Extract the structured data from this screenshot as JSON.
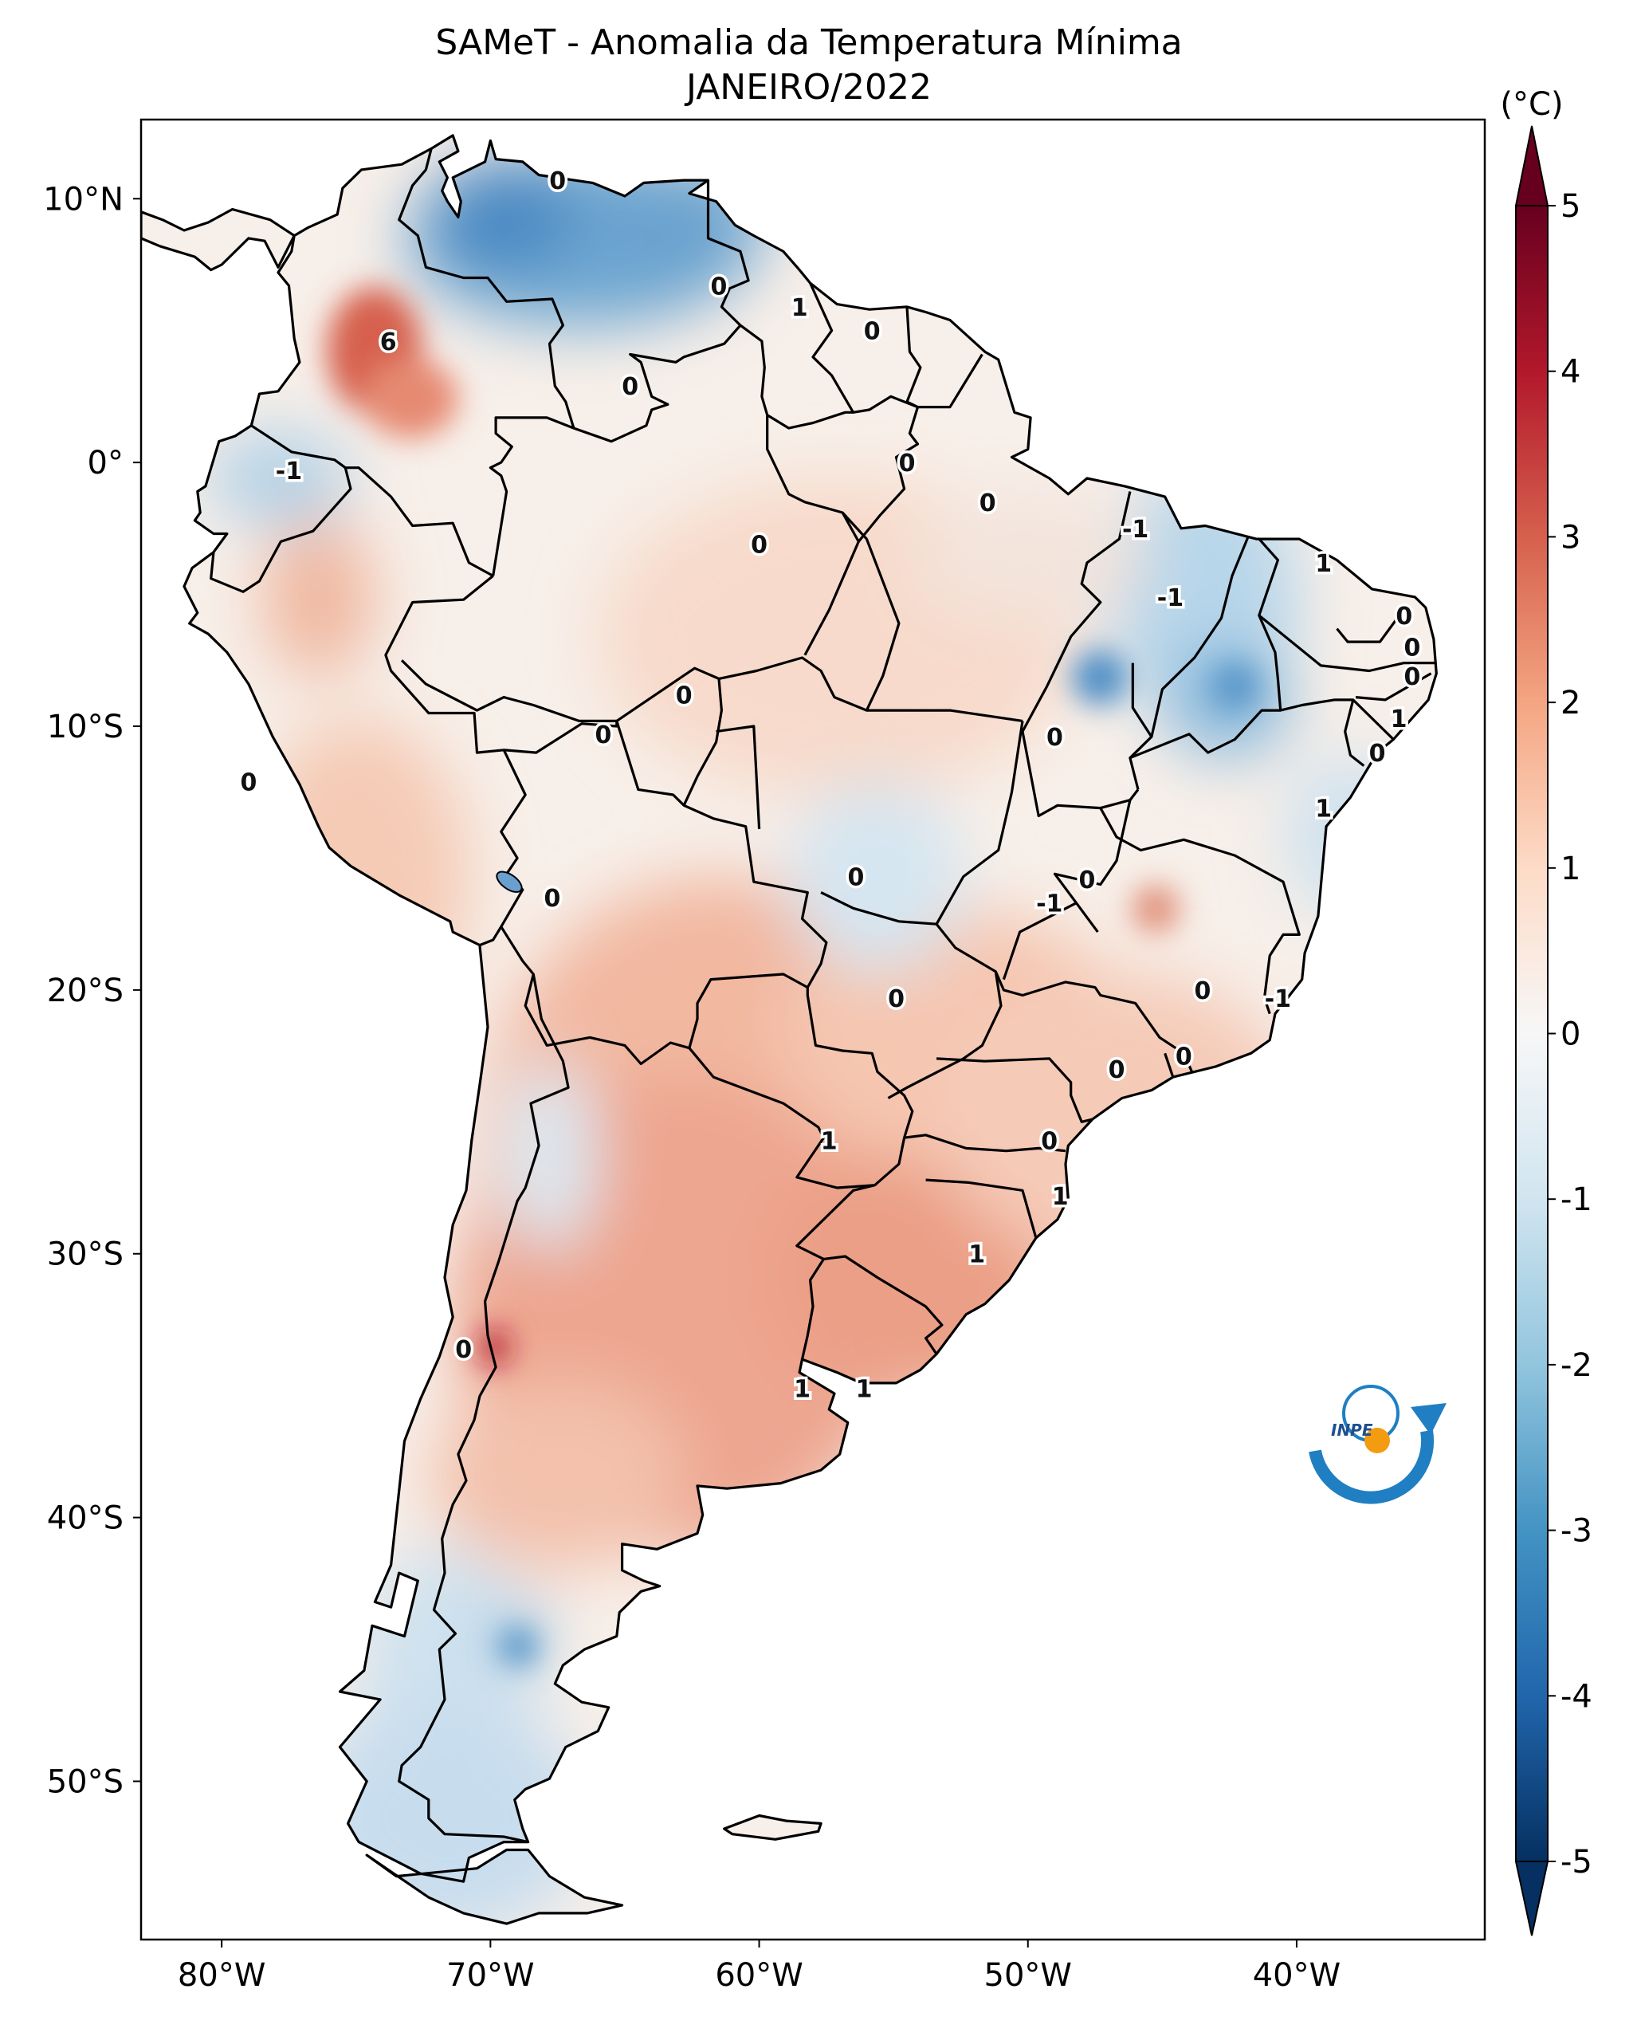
{
  "title": {
    "line1": "SAMeT - Anomalia da Temperatura Mínima",
    "line2": "JANEIRO/2022"
  },
  "axes": {
    "lon_range": [
      -83,
      -33
    ],
    "lat_range": [
      -56,
      13
    ],
    "lon_ticks": [
      {
        "value": -80,
        "label": "80°W"
      },
      {
        "value": -70,
        "label": "70°W"
      },
      {
        "value": -60,
        "label": "60°W"
      },
      {
        "value": -50,
        "label": "50°W"
      },
      {
        "value": -40,
        "label": "40°W"
      }
    ],
    "lat_ticks": [
      {
        "value": 10,
        "label": "10°N"
      },
      {
        "value": 0,
        "label": "0°"
      },
      {
        "value": -10,
        "label": "10°S"
      },
      {
        "value": -20,
        "label": "20°S"
      },
      {
        "value": -30,
        "label": "30°S"
      },
      {
        "value": -40,
        "label": "40°S"
      },
      {
        "value": -50,
        "label": "50°S"
      }
    ]
  },
  "colorbar": {
    "unit": "(°C)",
    "min": -5,
    "max": 5,
    "extend": "both",
    "ticks": [
      "5",
      "4",
      "3",
      "2",
      "1",
      "0",
      "-1",
      "-2",
      "-3",
      "-4",
      "-5"
    ],
    "colors": [
      "#67001f",
      "#b2182b",
      "#d6604d",
      "#f4a582",
      "#fddbc7",
      "#f7f7f7",
      "#d1e5f0",
      "#92c5de",
      "#4393c3",
      "#2166ac",
      "#053061"
    ]
  },
  "contour_labels": [
    {
      "text": "0",
      "lon": -67.5,
      "lat": 10.7
    },
    {
      "text": "0",
      "lon": -61.5,
      "lat": 6.7
    },
    {
      "text": "1",
      "lon": -58.5,
      "lat": 5.9
    },
    {
      "text": "0",
      "lon": -55.8,
      "lat": 5.0
    },
    {
      "text": "6",
      "lon": -73.8,
      "lat": 4.6
    },
    {
      "text": "0",
      "lon": -64.8,
      "lat": 2.9
    },
    {
      "text": "-1",
      "lon": -77.5,
      "lat": -0.3
    },
    {
      "text": "0",
      "lon": -54.5,
      "lat": 0.0
    },
    {
      "text": "0",
      "lon": -51.5,
      "lat": -1.5
    },
    {
      "text": "-1",
      "lon": -46.0,
      "lat": -2.5
    },
    {
      "text": "1",
      "lon": -39.0,
      "lat": -3.8
    },
    {
      "text": "0",
      "lon": -60.0,
      "lat": -3.1
    },
    {
      "text": "-1",
      "lon": -44.7,
      "lat": -5.1
    },
    {
      "text": "0",
      "lon": -36.0,
      "lat": -5.8
    },
    {
      "text": "0",
      "lon": -35.7,
      "lat": -7.0
    },
    {
      "text": "0",
      "lon": -35.7,
      "lat": -8.1
    },
    {
      "text": "1",
      "lon": -36.2,
      "lat": -9.7
    },
    {
      "text": "0",
      "lon": -37.0,
      "lat": -11.0
    },
    {
      "text": "0",
      "lon": -62.8,
      "lat": -8.8
    },
    {
      "text": "0",
      "lon": -65.8,
      "lat": -10.3
    },
    {
      "text": "0",
      "lon": -49.0,
      "lat": -10.4
    },
    {
      "text": "1",
      "lon": -39.0,
      "lat": -13.1
    },
    {
      "text": "0",
      "lon": -79.0,
      "lat": -12.1
    },
    {
      "text": "0",
      "lon": -56.4,
      "lat": -15.7
    },
    {
      "text": "0",
      "lon": -47.8,
      "lat": -15.8
    },
    {
      "text": "-1",
      "lon": -49.2,
      "lat": -16.7
    },
    {
      "text": "0",
      "lon": -67.7,
      "lat": -16.5
    },
    {
      "text": "0",
      "lon": -43.5,
      "lat": -20.0
    },
    {
      "text": "-1",
      "lon": -40.7,
      "lat": -20.3
    },
    {
      "text": "0",
      "lon": -54.9,
      "lat": -20.3
    },
    {
      "text": "0",
      "lon": -44.2,
      "lat": -22.5
    },
    {
      "text": "0",
      "lon": -46.7,
      "lat": -23.0
    },
    {
      "text": "1",
      "lon": -57.4,
      "lat": -25.7
    },
    {
      "text": "0",
      "lon": -49.2,
      "lat": -25.7
    },
    {
      "text": "1",
      "lon": -48.8,
      "lat": -27.8
    },
    {
      "text": "1",
      "lon": -51.9,
      "lat": -30.0
    },
    {
      "text": "0",
      "lon": -71.0,
      "lat": -33.6
    },
    {
      "text": "1",
      "lon": -58.4,
      "lat": -35.1
    },
    {
      "text": "1",
      "lon": -56.1,
      "lat": -35.1
    }
  ],
  "logo": {
    "text": "INPE"
  }
}
